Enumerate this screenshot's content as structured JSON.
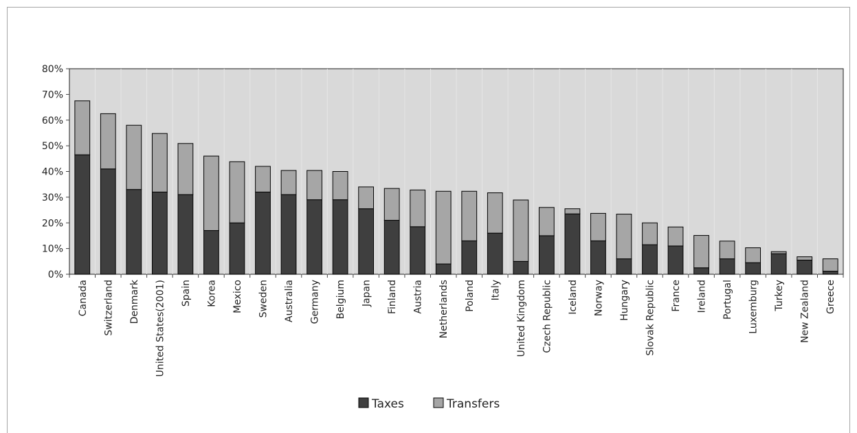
{
  "chart_data": {
    "type": "bar",
    "stacked": true,
    "title": "",
    "xlabel": "",
    "ylabel": "",
    "ylim": [
      0,
      0.8
    ],
    "yticks": [
      "0%",
      "10%",
      "20%",
      "30%",
      "40%",
      "50%",
      "60%",
      "70%",
      "80%"
    ],
    "grid": false,
    "legend_position": "bottom",
    "categories": [
      "Canada",
      "Switzerland",
      "Denmark",
      "United States(2001)",
      "Spain",
      "Korea",
      "Mexico",
      "Sweden",
      "Australia",
      "Germany",
      "Belgium",
      "Japan",
      "Finland",
      "Austria",
      "Netherlands",
      "Poland",
      "Italy",
      "United Kingdom",
      "Czech Republic",
      "Iceland",
      "Norway",
      "Hungary",
      "Slovak Republic",
      "France",
      "Ireland",
      "Portugal",
      "Luxemburg",
      "Turkey",
      "New Zealand",
      "Greece"
    ],
    "series": [
      {
        "name": "Taxes",
        "color": "#3f3f3f",
        "values": [
          0.465,
          0.41,
          0.33,
          0.32,
          0.31,
          0.17,
          0.2,
          0.32,
          0.31,
          0.29,
          0.29,
          0.255,
          0.21,
          0.185,
          0.04,
          0.13,
          0.16,
          0.05,
          0.15,
          0.235,
          0.13,
          0.06,
          0.115,
          0.11,
          0.025,
          0.06,
          0.045,
          0.08,
          0.055,
          0.012
        ]
      },
      {
        "name": "Transfers",
        "color": "#a6a6a6",
        "values": [
          0.21,
          0.215,
          0.25,
          0.228,
          0.199,
          0.29,
          0.238,
          0.1,
          0.094,
          0.114,
          0.11,
          0.085,
          0.124,
          0.143,
          0.283,
          0.193,
          0.157,
          0.239,
          0.11,
          0.02,
          0.107,
          0.174,
          0.085,
          0.074,
          0.126,
          0.069,
          0.058,
          0.008,
          0.013,
          0.048
        ]
      }
    ]
  }
}
